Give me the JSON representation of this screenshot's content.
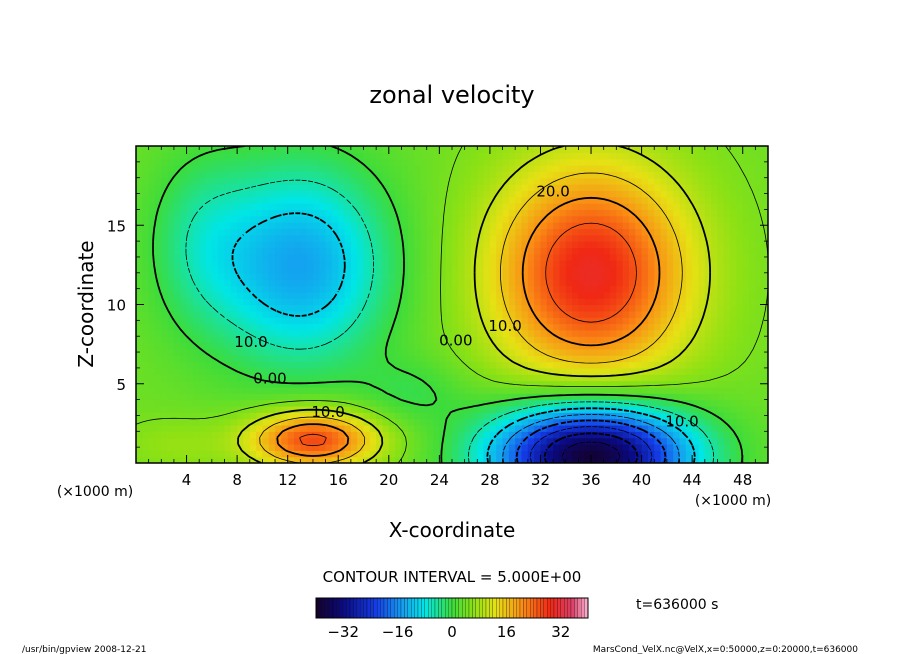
{
  "chart_data": {
    "type": "heatmap",
    "title": "zonal velocity",
    "xlabel": "X-coordinate",
    "ylabel": "Z-coordinate",
    "x_unit_left": "(×1000 m)",
    "x_unit_right": "(×1000 m)",
    "xlim": [
      0,
      50
    ],
    "ylim": [
      0,
      20
    ],
    "x_ticks": [
      4,
      8,
      12,
      16,
      20,
      24,
      28,
      32,
      36,
      40,
      44,
      48
    ],
    "y_ticks": [
      5,
      10,
      15
    ],
    "contour_labels": [
      {
        "text": "20.0",
        "x": 33,
        "y": 17.1
      },
      {
        "text": "10.0",
        "x": 29.2,
        "y": 8.6
      },
      {
        "text": "0.00",
        "x": 25.3,
        "y": 7.7
      },
      {
        "text": "10.0",
        "x": 9.1,
        "y": 7.6
      },
      {
        "text": "0.00",
        "x": 10.6,
        "y": 5.3
      },
      {
        "text": "10.0",
        "x": 15.2,
        "y": 3.2
      },
      {
        "text": "10.0",
        "x": 43.2,
        "y": 2.6
      }
    ],
    "contour_interval_text": "CONTOUR INTERVAL = 5.000E+00",
    "time_label": "t=636000 s",
    "colorbar": {
      "min": -40,
      "max": 40,
      "ticks": [
        -32,
        -16,
        0,
        16,
        32
      ]
    },
    "features": [
      {
        "name": "upper-positive-jet",
        "x": 36,
        "z": 12,
        "peak": 30
      },
      {
        "name": "lower-negative-jet",
        "x": 36,
        "z": 0.5,
        "peak": -38
      },
      {
        "name": "lower-positive-jet",
        "x": 14,
        "z": 1.5,
        "peak": 25
      },
      {
        "name": "upper-negative-region",
        "x": 13,
        "z": 12.5,
        "peak": -15
      }
    ]
  },
  "footer": {
    "left": "/usr/bin/gpview   2008-12-21",
    "right": "MarsCond_VelX.nc@VelX,x=0:50000,z=0:20000,t=636000"
  }
}
